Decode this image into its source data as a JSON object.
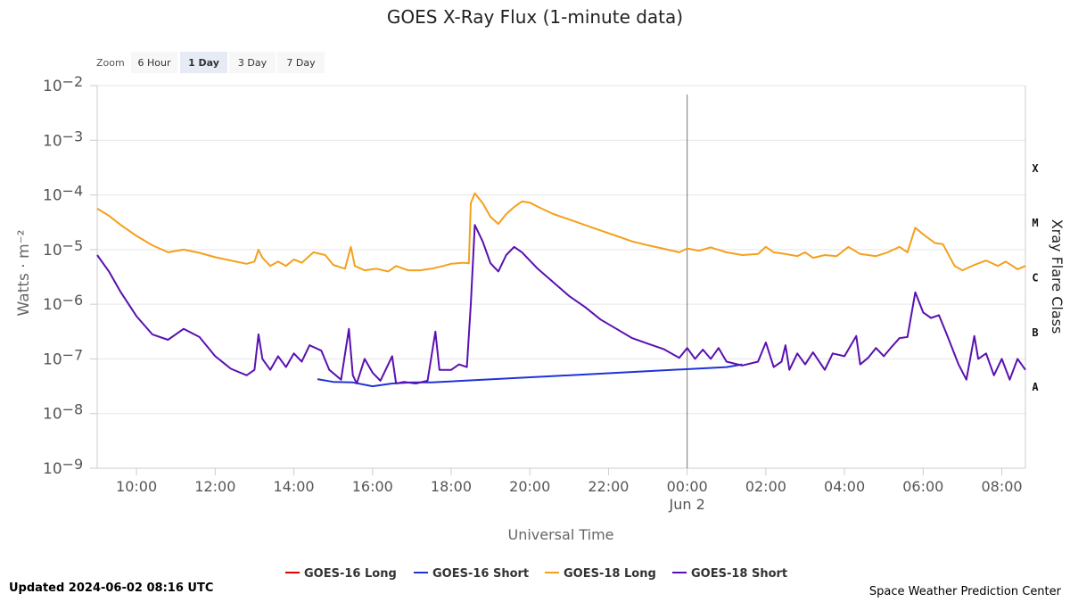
{
  "zoom": {
    "label": "Zoom",
    "options": [
      "6 Hour",
      "1 Day",
      "3 Day",
      "7 Day"
    ],
    "selected": "1 Day"
  },
  "footer": {
    "updated": "Updated 2024-06-02 08:16 UTC",
    "credit": "Space Weather Prediction Center"
  },
  "chart_data": {
    "type": "line",
    "title": "GOES X-Ray Flux (1-minute data)",
    "xlabel": "Universal Time",
    "ylabel": "Watts · m⁻²",
    "y2label": "Xray Flare Class",
    "yscale": "log",
    "xlim_hours": [
      9.0,
      32.6
    ],
    "ylim_exp": [
      -9,
      -2
    ],
    "x_tick_labels": [
      "10:00",
      "12:00",
      "14:00",
      "16:00",
      "18:00",
      "20:00",
      "22:00",
      "00:00",
      "02:00",
      "04:00",
      "06:00",
      "08:00"
    ],
    "x_tick_hours": [
      10,
      12,
      14,
      16,
      18,
      20,
      22,
      24,
      26,
      28,
      30,
      32
    ],
    "date_label": "Jun 2",
    "date_label_hour": 24,
    "y_tick_base": "10",
    "y_tick_exps": [
      "−2",
      "−3",
      "−4",
      "−5",
      "−6",
      "−7",
      "−8",
      "−9"
    ],
    "flare_classes": [
      {
        "label": "X",
        "exp": -3.5
      },
      {
        "label": "M",
        "exp": -4.5
      },
      {
        "label": "C",
        "exp": -5.5
      },
      {
        "label": "B",
        "exp": -6.5
      },
      {
        "label": "A",
        "exp": -7.5
      }
    ],
    "grid": true,
    "legend_position": "bottom",
    "series": [
      {
        "name": "GOES-16 Long",
        "color": "#e00000",
        "points": []
      },
      {
        "name": "GOES-16 Short",
        "color": "#1f32d8",
        "points": [
          [
            14.6,
            -7.37
          ],
          [
            15.0,
            -7.42
          ],
          [
            15.5,
            -7.43
          ],
          [
            16.0,
            -7.5
          ],
          [
            16.5,
            -7.45
          ],
          [
            17.0,
            -7.43
          ],
          [
            17.5,
            -7.43
          ],
          [
            25.0,
            -7.15
          ],
          [
            25.4,
            -7.1
          ]
        ]
      },
      {
        "name": "GOES-18 Long",
        "color": "#f4a01c",
        "points": [
          [
            9.0,
            -4.25
          ],
          [
            9.3,
            -4.38
          ],
          [
            9.6,
            -4.55
          ],
          [
            10.0,
            -4.75
          ],
          [
            10.4,
            -4.92
          ],
          [
            10.8,
            -5.05
          ],
          [
            11.2,
            -5.0
          ],
          [
            11.6,
            -5.06
          ],
          [
            12.0,
            -5.14
          ],
          [
            12.4,
            -5.2
          ],
          [
            12.8,
            -5.26
          ],
          [
            13.0,
            -5.22
          ],
          [
            13.1,
            -5.0
          ],
          [
            13.2,
            -5.15
          ],
          [
            13.4,
            -5.3
          ],
          [
            13.6,
            -5.22
          ],
          [
            13.8,
            -5.3
          ],
          [
            14.0,
            -5.18
          ],
          [
            14.2,
            -5.24
          ],
          [
            14.5,
            -5.05
          ],
          [
            14.8,
            -5.1
          ],
          [
            15.0,
            -5.28
          ],
          [
            15.3,
            -5.35
          ],
          [
            15.45,
            -4.95
          ],
          [
            15.55,
            -5.3
          ],
          [
            15.8,
            -5.38
          ],
          [
            16.1,
            -5.35
          ],
          [
            16.4,
            -5.4
          ],
          [
            16.6,
            -5.3
          ],
          [
            16.9,
            -5.38
          ],
          [
            17.2,
            -5.38
          ],
          [
            17.5,
            -5.35
          ],
          [
            17.8,
            -5.3
          ],
          [
            18.0,
            -5.26
          ],
          [
            18.3,
            -5.24
          ],
          [
            18.45,
            -5.25
          ],
          [
            18.5,
            -4.15
          ],
          [
            18.6,
            -3.97
          ],
          [
            18.8,
            -4.15
          ],
          [
            19.0,
            -4.4
          ],
          [
            19.2,
            -4.53
          ],
          [
            19.4,
            -4.35
          ],
          [
            19.6,
            -4.22
          ],
          [
            19.8,
            -4.12
          ],
          [
            20.0,
            -4.14
          ],
          [
            20.3,
            -4.25
          ],
          [
            20.6,
            -4.35
          ],
          [
            21.0,
            -4.45
          ],
          [
            21.4,
            -4.55
          ],
          [
            21.8,
            -4.65
          ],
          [
            22.2,
            -4.75
          ],
          [
            22.6,
            -4.85
          ],
          [
            23.0,
            -4.92
          ],
          [
            23.5,
            -5.0
          ],
          [
            23.8,
            -5.05
          ],
          [
            24.0,
            -4.98
          ],
          [
            24.3,
            -5.02
          ],
          [
            24.6,
            -4.96
          ],
          [
            25.0,
            -5.05
          ],
          [
            25.4,
            -5.1
          ],
          [
            25.8,
            -5.08
          ],
          [
            26.0,
            -4.95
          ],
          [
            26.2,
            -5.05
          ],
          [
            26.5,
            -5.08
          ],
          [
            26.8,
            -5.12
          ],
          [
            27.0,
            -5.05
          ],
          [
            27.2,
            -5.15
          ],
          [
            27.5,
            -5.1
          ],
          [
            27.8,
            -5.12
          ],
          [
            28.1,
            -4.95
          ],
          [
            28.4,
            -5.08
          ],
          [
            28.8,
            -5.12
          ],
          [
            29.1,
            -5.05
          ],
          [
            29.4,
            -4.95
          ],
          [
            29.6,
            -5.05
          ],
          [
            29.8,
            -4.6
          ],
          [
            30.0,
            -4.72
          ],
          [
            30.3,
            -4.88
          ],
          [
            30.5,
            -4.9
          ],
          [
            30.8,
            -5.3
          ],
          [
            31.0,
            -5.38
          ],
          [
            31.3,
            -5.28
          ],
          [
            31.6,
            -5.2
          ],
          [
            31.9,
            -5.3
          ],
          [
            32.1,
            -5.22
          ],
          [
            32.4,
            -5.36
          ],
          [
            32.6,
            -5.3
          ]
        ]
      },
      {
        "name": "GOES-18 Short",
        "color": "#5a10b0",
        "points": [
          [
            9.0,
            -5.1
          ],
          [
            9.3,
            -5.4
          ],
          [
            9.6,
            -5.78
          ],
          [
            10.0,
            -6.22
          ],
          [
            10.4,
            -6.55
          ],
          [
            10.8,
            -6.65
          ],
          [
            11.2,
            -6.45
          ],
          [
            11.6,
            -6.6
          ],
          [
            12.0,
            -6.95
          ],
          [
            12.4,
            -7.18
          ],
          [
            12.8,
            -7.3
          ],
          [
            13.0,
            -7.2
          ],
          [
            13.1,
            -6.55
          ],
          [
            13.2,
            -7.0
          ],
          [
            13.4,
            -7.2
          ],
          [
            13.6,
            -6.95
          ],
          [
            13.8,
            -7.15
          ],
          [
            14.0,
            -6.9
          ],
          [
            14.2,
            -7.05
          ],
          [
            14.4,
            -6.75
          ],
          [
            14.7,
            -6.85
          ],
          [
            14.9,
            -7.2
          ],
          [
            15.2,
            -7.38
          ],
          [
            15.4,
            -6.45
          ],
          [
            15.5,
            -7.3
          ],
          [
            15.6,
            -7.45
          ],
          [
            15.8,
            -7.0
          ],
          [
            16.0,
            -7.25
          ],
          [
            16.2,
            -7.4
          ],
          [
            16.5,
            -6.95
          ],
          [
            16.6,
            -7.45
          ],
          [
            16.8,
            -7.42
          ],
          [
            17.1,
            -7.45
          ],
          [
            17.4,
            -7.4
          ],
          [
            17.6,
            -6.5
          ],
          [
            17.7,
            -7.2
          ],
          [
            18.0,
            -7.2
          ],
          [
            18.2,
            -7.1
          ],
          [
            18.4,
            -7.15
          ],
          [
            18.5,
            -6.0
          ],
          [
            18.6,
            -4.55
          ],
          [
            18.8,
            -4.85
          ],
          [
            19.0,
            -5.25
          ],
          [
            19.2,
            -5.4
          ],
          [
            19.4,
            -5.1
          ],
          [
            19.6,
            -4.95
          ],
          [
            19.8,
            -5.05
          ],
          [
            20.2,
            -5.35
          ],
          [
            20.6,
            -5.6
          ],
          [
            21.0,
            -5.85
          ],
          [
            21.4,
            -6.05
          ],
          [
            21.8,
            -6.28
          ],
          [
            22.2,
            -6.45
          ],
          [
            22.6,
            -6.62
          ],
          [
            23.0,
            -6.72
          ],
          [
            23.4,
            -6.82
          ],
          [
            23.8,
            -6.98
          ],
          [
            24.0,
            -6.8
          ],
          [
            24.2,
            -7.0
          ],
          [
            24.4,
            -6.83
          ],
          [
            24.6,
            -7.0
          ],
          [
            24.8,
            -6.8
          ],
          [
            25.0,
            -7.05
          ],
          [
            25.4,
            -7.12
          ],
          [
            25.8,
            -7.05
          ],
          [
            26.0,
            -6.7
          ],
          [
            26.2,
            -7.15
          ],
          [
            26.4,
            -7.05
          ],
          [
            26.5,
            -6.75
          ],
          [
            26.6,
            -7.2
          ],
          [
            26.8,
            -6.9
          ],
          [
            27.0,
            -7.1
          ],
          [
            27.2,
            -6.88
          ],
          [
            27.5,
            -7.2
          ],
          [
            27.7,
            -6.9
          ],
          [
            28.0,
            -6.95
          ],
          [
            28.3,
            -6.58
          ],
          [
            28.4,
            -7.1
          ],
          [
            28.6,
            -6.98
          ],
          [
            28.8,
            -6.8
          ],
          [
            29.0,
            -6.95
          ],
          [
            29.2,
            -6.78
          ],
          [
            29.4,
            -6.62
          ],
          [
            29.6,
            -6.6
          ],
          [
            29.8,
            -5.78
          ],
          [
            30.0,
            -6.15
          ],
          [
            30.2,
            -6.25
          ],
          [
            30.4,
            -6.2
          ],
          [
            30.6,
            -6.55
          ],
          [
            30.9,
            -7.1
          ],
          [
            31.1,
            -7.38
          ],
          [
            31.3,
            -6.58
          ],
          [
            31.4,
            -7.0
          ],
          [
            31.6,
            -6.9
          ],
          [
            31.8,
            -7.3
          ],
          [
            32.0,
            -7.0
          ],
          [
            32.2,
            -7.38
          ],
          [
            32.4,
            -7.0
          ],
          [
            32.6,
            -7.2
          ]
        ]
      }
    ]
  }
}
